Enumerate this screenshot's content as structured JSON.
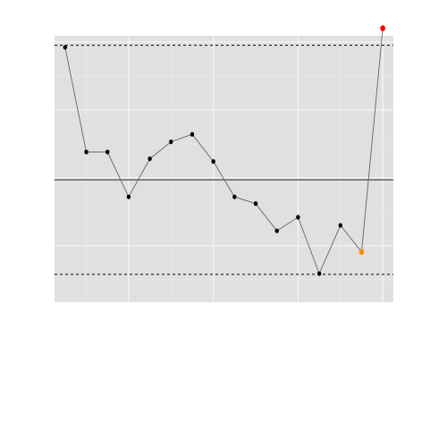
{
  "chart_data": {
    "type": "line",
    "title": "",
    "xlabel": "",
    "ylabel": "",
    "x": [
      1,
      2,
      3,
      4,
      5,
      6,
      7,
      8,
      9,
      10,
      11,
      12,
      13,
      14,
      15,
      16
    ],
    "y": [
      79.2,
      63.8,
      63.8,
      57.2,
      62.8,
      65.3,
      66.4,
      62.4,
      57.2,
      56.2,
      52.2,
      54.2,
      45.9,
      53.0,
      49.1,
      82.0
    ],
    "xlim": [
      0.5,
      16.5
    ],
    "ylim": [
      41.7,
      80.9
    ],
    "center_line": 59.7,
    "upper_limit": 79.5,
    "lower_limit": 45.8,
    "point_colors": [
      "#000000",
      "#000000",
      "#000000",
      "#000000",
      "#000000",
      "#000000",
      "#000000",
      "#000000",
      "#000000",
      "#000000",
      "#000000",
      "#000000",
      "#000000",
      "#000000",
      "#ff8c00",
      "#ff0000"
    ],
    "panel_background": "#e0e0e0",
    "grid": true,
    "line_color": "#666666"
  }
}
